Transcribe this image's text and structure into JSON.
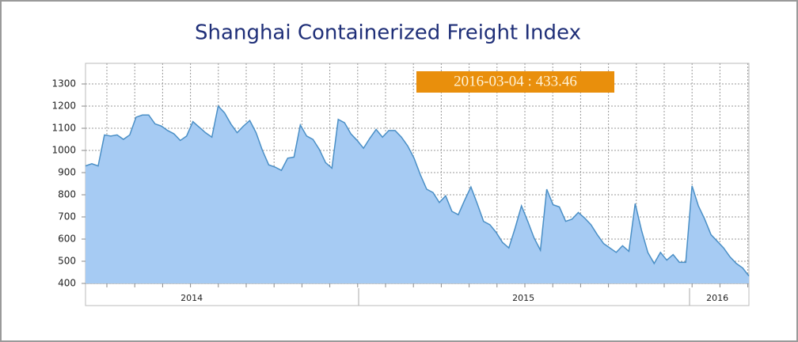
{
  "chart_data": {
    "type": "area",
    "title": "Shanghai Containerized Freight Index",
    "annotation": "2016-03-04 : 433.46",
    "fill_color": "#a6cbf3",
    "line_color": "#4a8fc6",
    "grid": true,
    "values": [
      930,
      940,
      930,
      1070,
      1065,
      1070,
      1050,
      1070,
      1150,
      1160,
      1160,
      1120,
      1110,
      1090,
      1075,
      1045,
      1065,
      1130,
      1105,
      1080,
      1060,
      1200,
      1170,
      1120,
      1080,
      1110,
      1135,
      1080,
      1000,
      935,
      925,
      910,
      965,
      970,
      1115,
      1065,
      1050,
      1005,
      945,
      920,
      1140,
      1125,
      1075,
      1045,
      1010,
      1055,
      1095,
      1060,
      1090,
      1090,
      1060,
      1020,
      965,
      890,
      825,
      810,
      765,
      795,
      725,
      710,
      775,
      835,
      760,
      680,
      665,
      630,
      585,
      560,
      650,
      750,
      680,
      605,
      550,
      825,
      755,
      745,
      680,
      690,
      720,
      695,
      665,
      620,
      580,
      560,
      540,
      570,
      545,
      760,
      640,
      540,
      490,
      540,
      505,
      530,
      495,
      495,
      840,
      750,
      690,
      620,
      590,
      560,
      520,
      490,
      470,
      433.46
    ],
    "xlim": [
      0,
      105
    ],
    "xticks": [
      {
        "value": 16.8,
        "label": "2014"
      },
      {
        "value": 69.3,
        "label": "2015"
      },
      {
        "value": 100,
        "label": "2016"
      }
    ],
    "ylim": [
      400,
      1393
    ],
    "yticks": [
      400,
      500,
      600,
      700,
      800,
      900,
      1000,
      1100,
      1200,
      1300
    ]
  }
}
